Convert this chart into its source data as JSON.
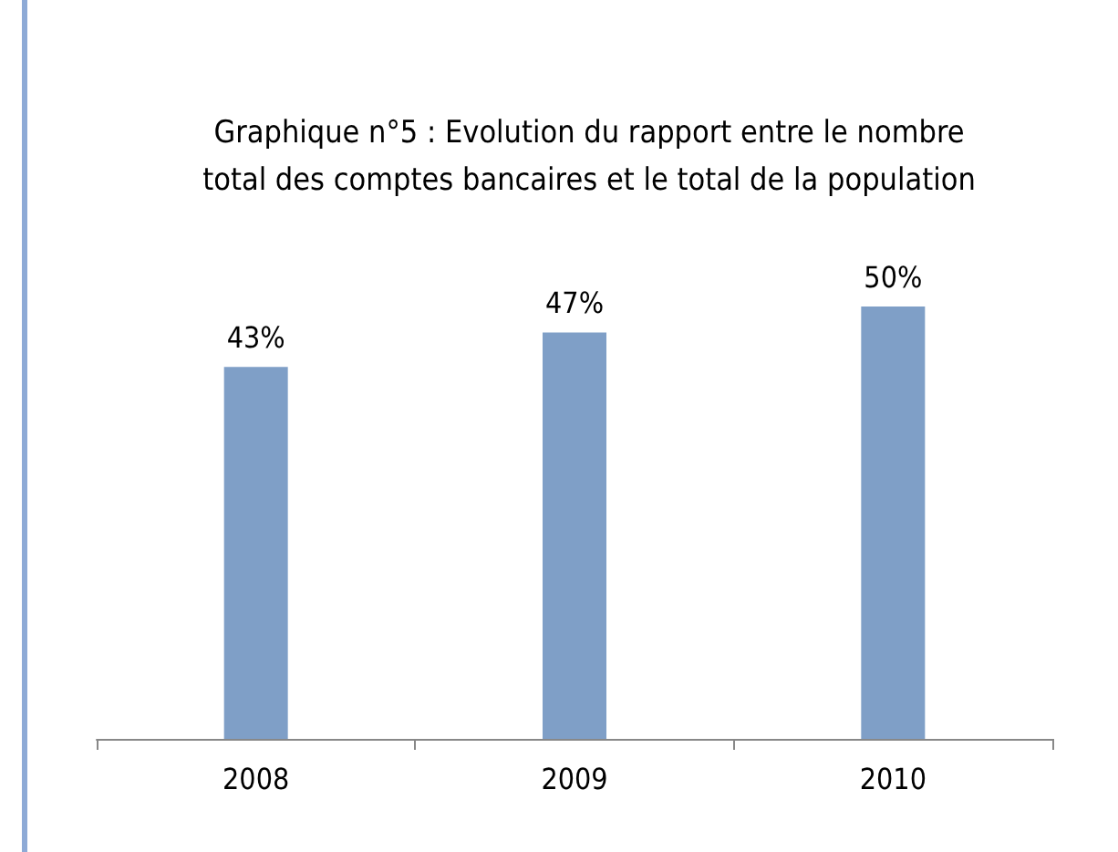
{
  "chart_data": {
    "type": "bar",
    "title": "Graphique n°5 : Evolution du rapport entre le nombre\ntotal des comptes bancaires et le total de la population",
    "categories": [
      "2008",
      "2009",
      "2010"
    ],
    "values": [
      43,
      47,
      50
    ],
    "value_labels": [
      "43%",
      "47%",
      "50%"
    ],
    "color": "#7f9fc7",
    "grid": false
  }
}
